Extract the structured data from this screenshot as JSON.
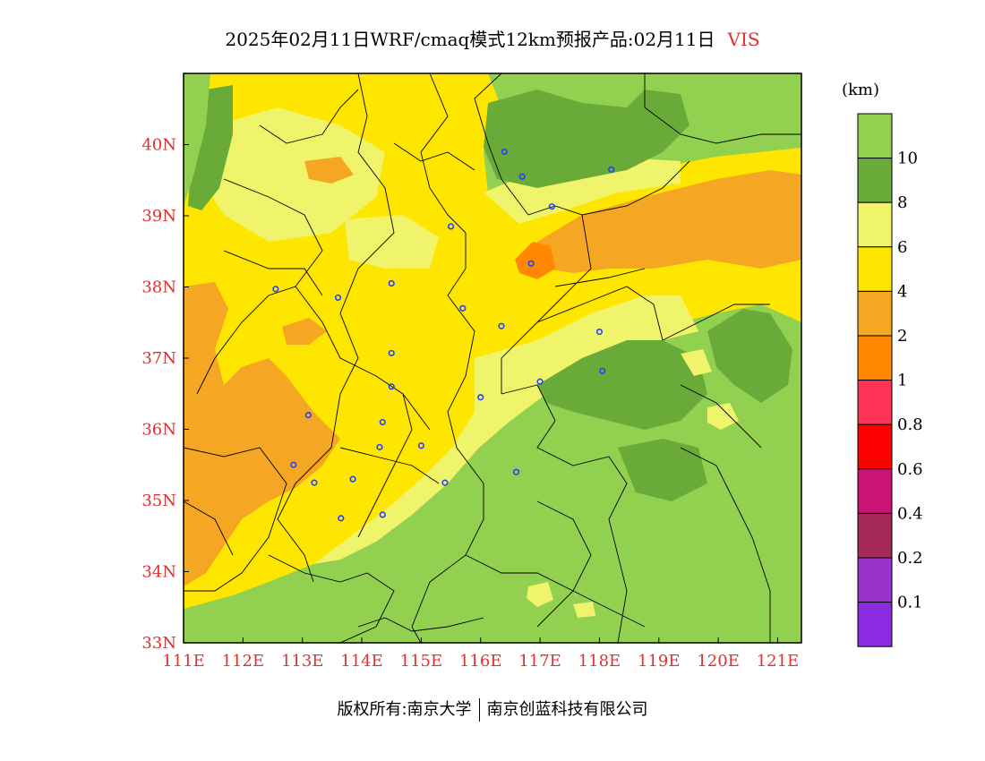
{
  "title": {
    "main": "2025年02月11日WRF/cmaq模式12km预报产品:02月11日",
    "variable": "VIS"
  },
  "colors": {
    "axis_label": "#e03030",
    "title_variable": "#e03030",
    "station_marker": "#2040ff"
  },
  "axes": {
    "lon_labels": [
      "111E",
      "112E",
      "113E",
      "114E",
      "115E",
      "116E",
      "117E",
      "118E",
      "119E",
      "120E",
      "121E"
    ],
    "lat_labels": [
      "40N",
      "39N",
      "38N",
      "37N",
      "36N",
      "35N",
      "34N",
      "33N"
    ],
    "lon_range": [
      111,
      121.4
    ],
    "lat_range": [
      33,
      41
    ]
  },
  "legend": {
    "unit": "(km)",
    "labels": [
      "10",
      "8",
      "6",
      "4",
      "2",
      "1",
      "0.8",
      "0.6",
      "0.4",
      "0.2",
      "0.1"
    ],
    "colors": [
      "#92d050",
      "#6aaa38",
      "#f0f46a",
      "#ffe600",
      "#f5a623",
      "#ff8800",
      "#ff3355",
      "#ff0000",
      "#cc1177",
      "#a52a5a",
      "#9933cc",
      "#8a2be2"
    ]
  },
  "chart_data": {
    "type": "heatmap",
    "variable": "VIS",
    "unit": "km",
    "xlabel": "",
    "ylabel": "",
    "xlim": [
      111,
      121.4
    ],
    "ylim": [
      33,
      41
    ],
    "stations": [
      {
        "lon": 116.4,
        "lat": 39.9
      },
      {
        "lon": 116.7,
        "lat": 39.55
      },
      {
        "lon": 118.2,
        "lat": 39.65
      },
      {
        "lon": 117.2,
        "lat": 39.13
      },
      {
        "lon": 115.5,
        "lat": 38.85
      },
      {
        "lon": 116.85,
        "lat": 38.33
      },
      {
        "lon": 112.55,
        "lat": 37.97
      },
      {
        "lon": 113.6,
        "lat": 37.85
      },
      {
        "lon": 114.5,
        "lat": 38.05
      },
      {
        "lon": 115.7,
        "lat": 37.7
      },
      {
        "lon": 116.35,
        "lat": 37.45
      },
      {
        "lon": 118.0,
        "lat": 37.37
      },
      {
        "lon": 114.5,
        "lat": 37.07
      },
      {
        "lon": 117.0,
        "lat": 36.67
      },
      {
        "lon": 118.05,
        "lat": 36.82
      },
      {
        "lon": 114.5,
        "lat": 36.6
      },
      {
        "lon": 116.0,
        "lat": 36.45
      },
      {
        "lon": 113.1,
        "lat": 36.2
      },
      {
        "lon": 114.35,
        "lat": 36.1
      },
      {
        "lon": 114.3,
        "lat": 35.75
      },
      {
        "lon": 115.0,
        "lat": 35.77
      },
      {
        "lon": 112.85,
        "lat": 35.5
      },
      {
        "lon": 116.6,
        "lat": 35.4
      },
      {
        "lon": 113.2,
        "lat": 35.25
      },
      {
        "lon": 113.85,
        "lat": 35.3
      },
      {
        "lon": 115.4,
        "lat": 35.25
      },
      {
        "lon": 114.35,
        "lat": 34.8
      },
      {
        "lon": 113.65,
        "lat": 34.75
      }
    ],
    "regions": [
      {
        "class": "4-6",
        "approx": "west/central plains (Shanxi, Hebei, Henan, Shandong west)"
      },
      {
        "class": "2-4",
        "approx": "band from Tianjin to Bohai; patches in southern Shanxi/western Henan"
      },
      {
        "class": "6-8",
        "approx": "transition zones and NE Shandong"
      },
      {
        "class": "8-10",
        "approx": "Beijing north, Shandong central"
      },
      {
        "class": ">10",
        "approx": "south of ~35N, east Shandong, NE corner"
      }
    ]
  },
  "footer": {
    "copyright": "版权所有:南京大学",
    "company": "南京创蓝科技有限公司"
  }
}
